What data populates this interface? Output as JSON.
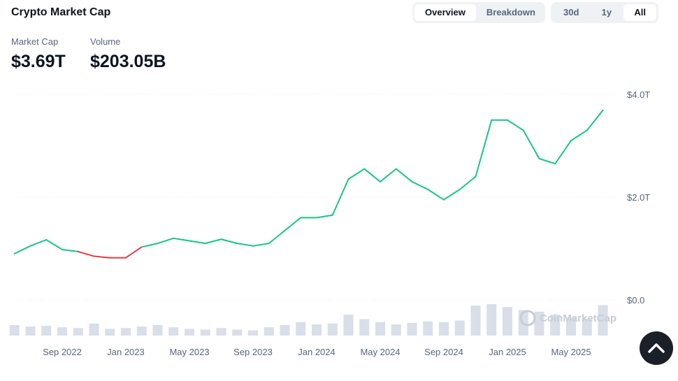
{
  "header": {
    "title": "Crypto Market Cap",
    "tabs": [
      "Overview",
      "Breakdown"
    ],
    "ranges": [
      "30d",
      "1y",
      "All"
    ]
  },
  "stats": [
    {
      "label": "Market Cap",
      "value": "$3.69T"
    },
    {
      "label": "Volume",
      "value": "$203.05B"
    }
  ],
  "watermark": "CoinMarketCap",
  "chart_data": {
    "type": "line",
    "x": [
      "2022-06",
      "2022-07",
      "2022-08",
      "2022-09",
      "2022-10",
      "2022-11",
      "2022-12",
      "2023-01",
      "2023-02",
      "2023-03",
      "2023-04",
      "2023-05",
      "2023-06",
      "2023-07",
      "2023-08",
      "2023-09",
      "2023-10",
      "2023-11",
      "2023-12",
      "2024-01",
      "2024-02",
      "2024-03",
      "2024-04",
      "2024-05",
      "2024-06",
      "2024-07",
      "2024-08",
      "2024-09",
      "2024-10",
      "2024-11",
      "2024-12",
      "2025-01",
      "2025-02",
      "2025-03",
      "2025-04",
      "2025-05",
      "2025-06",
      "2025-07"
    ],
    "series": [
      {
        "name": "Market Cap",
        "color": "#16c784",
        "down_color": "#ea3943",
        "values": [
          0.9,
          1.05,
          1.17,
          0.98,
          0.94,
          0.85,
          0.82,
          0.82,
          1.03,
          1.1,
          1.2,
          1.15,
          1.1,
          1.18,
          1.1,
          1.05,
          1.1,
          1.35,
          1.6,
          1.6,
          1.65,
          2.35,
          2.55,
          2.3,
          2.55,
          2.3,
          2.15,
          1.95,
          2.15,
          2.4,
          3.5,
          3.5,
          3.3,
          2.75,
          2.65,
          3.1,
          3.3,
          3.69
        ]
      },
      {
        "name": "Volume",
        "color": "#cfd6e4",
        "values": [
          70,
          60,
          65,
          55,
          50,
          80,
          45,
          50,
          60,
          70,
          55,
          45,
          40,
          50,
          40,
          35,
          55,
          70,
          90,
          75,
          80,
          140,
          110,
          90,
          75,
          85,
          95,
          90,
          100,
          200,
          210,
          190,
          170,
          160,
          140,
          120,
          110,
          203.05
        ]
      }
    ],
    "ylim": [
      0,
      4
    ],
    "yticks": [
      {
        "value": 0,
        "label": "$0.0"
      },
      {
        "value": 2,
        "label": "$2.0T"
      },
      {
        "value": 4,
        "label": "$4.0T"
      }
    ],
    "xticks": [
      {
        "value": "2022-09",
        "label": "Sep 2022"
      },
      {
        "value": "2023-01",
        "label": "Jan 2023"
      },
      {
        "value": "2023-05",
        "label": "May 2023"
      },
      {
        "value": "2023-09",
        "label": "Sep 2023"
      },
      {
        "value": "2024-01",
        "label": "Jan 2024"
      },
      {
        "value": "2024-05",
        "label": "May 2024"
      },
      {
        "value": "2024-09",
        "label": "Sep 2024"
      },
      {
        "value": "2025-01",
        "label": "Jan 2025"
      },
      {
        "value": "2025-05",
        "label": "May 2025"
      }
    ],
    "grid": true
  }
}
